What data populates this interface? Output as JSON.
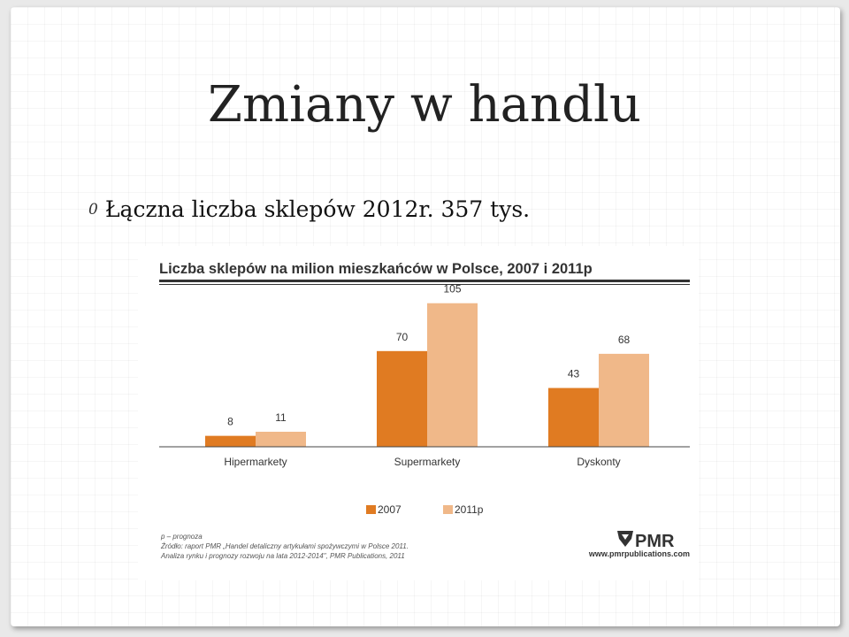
{
  "slide": {
    "title": "Zmiany w handlu",
    "bullet_marker": "0",
    "bullet_text": "Łączna liczba sklepów 2012r. 357 tys."
  },
  "chart_data": {
    "type": "bar",
    "title": "Liczba sklepów na milion mieszkańców w Polsce, 2007 i 2011p",
    "categories": [
      "Hipermarkety",
      "Supermarkety",
      "Dyskonty"
    ],
    "series": [
      {
        "name": "2007",
        "values": [
          8,
          70,
          43
        ],
        "color": "#e07b22"
      },
      {
        "name": "2011p",
        "values": [
          11,
          105,
          68
        ],
        "color": "#f0b889"
      }
    ],
    "ylim": [
      0,
      110
    ],
    "grid": false,
    "legend_position": "bottom-center",
    "footnote_lines": [
      "p – prognoza",
      "Źródło: raport PMR „Handel detaliczny artykułami spożywczymi w Polsce 2011.",
      "Analiza rynku i prognozy rozwoju na lata 2012-2014\", PMR Publications, 2011"
    ],
    "logo_text": "PMR",
    "website": "www.pmrpublications.com"
  }
}
